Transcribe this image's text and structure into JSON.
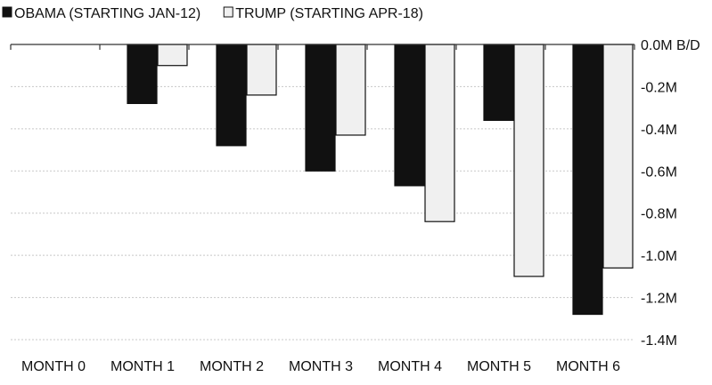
{
  "chart_data": {
    "type": "bar",
    "categories": [
      "MONTH 0",
      "MONTH 1",
      "MONTH 2",
      "MONTH 3",
      "MONTH 4",
      "MONTH 5",
      "MONTH 6"
    ],
    "series": [
      {
        "name": "OBAMA (STARTING JAN-12)",
        "color": "#111111",
        "values": [
          0,
          -0.28,
          -0.48,
          -0.6,
          -0.67,
          -0.36,
          -1.28
        ]
      },
      {
        "name": "TRUMP (STARTING APR-18)",
        "color": "#f0f0f0",
        "values": [
          0,
          -0.1,
          -0.24,
          -0.43,
          -0.84,
          -1.1,
          -1.06
        ]
      }
    ],
    "y_ticks": [
      {
        "value": 0,
        "label": "0.0M B/D"
      },
      {
        "value": -0.2,
        "label": "-0.2M"
      },
      {
        "value": -0.4,
        "label": "-0.4M"
      },
      {
        "value": -0.6,
        "label": "-0.6M"
      },
      {
        "value": -0.8,
        "label": "-0.8M"
      },
      {
        "value": -1.0,
        "label": "-1.0M"
      },
      {
        "value": -1.2,
        "label": "-1.2M"
      },
      {
        "value": -1.4,
        "label": "-1.4M"
      }
    ],
    "ylim": [
      -1.4,
      0
    ],
    "y_axis_side": "right",
    "grid": true,
    "legend_position": "top-left"
  }
}
